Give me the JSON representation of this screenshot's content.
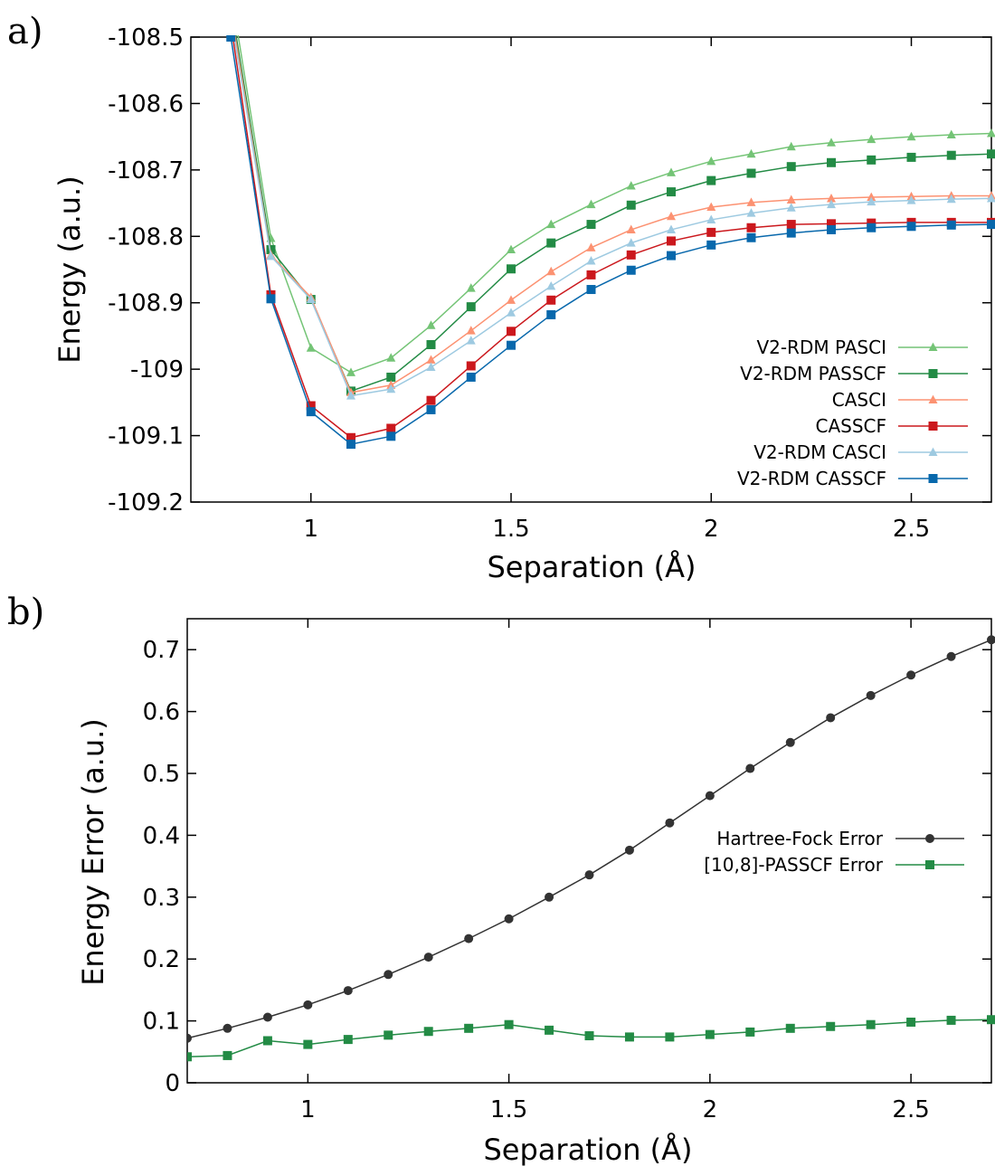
{
  "chart_data": [
    {
      "type": "line",
      "panel_label": "a)",
      "title": "",
      "xlabel": "Separation (Å)",
      "ylabel": "Energy (a.u.)",
      "xlim": [
        0.7,
        2.7
      ],
      "ylim": [
        -109.2,
        -108.5
      ],
      "xticks": [
        1,
        1.5,
        2,
        2.5
      ],
      "xtick_labels": [
        "1",
        "1.5",
        "2",
        "2.5"
      ],
      "yticks": [
        -108.5,
        -108.6,
        -108.7,
        -108.8,
        -108.9,
        -109.0,
        -109.1,
        -109.2
      ],
      "ytick_labels": [
        "-108.5",
        "-108.6",
        "-108.7",
        "-108.8",
        "-108.9",
        "-109",
        "-109.1",
        "-109.2"
      ],
      "grid": false,
      "legend_position": "right",
      "x": [
        0.8,
        0.9,
        1.0,
        1.1,
        1.2,
        1.3,
        1.4,
        1.5,
        1.6,
        1.7,
        1.8,
        1.9,
        2.0,
        2.1,
        2.2,
        2.3,
        2.4,
        2.5,
        2.6,
        2.7
      ],
      "series": [
        {
          "name": "V2-RDM PASCI",
          "color": "#74c476",
          "marker": "triangle",
          "values": [
            -108.43,
            -108.803,
            -108.968,
            -109.005,
            -108.983,
            -108.934,
            -108.878,
            -108.82,
            -108.782,
            -108.752,
            -108.724,
            -108.704,
            -108.687,
            -108.676,
            -108.665,
            -108.659,
            -108.654,
            -108.65,
            -108.647,
            -108.645
          ]
        },
        {
          "name": "V2-RDM PASSCF",
          "color": "#238b45",
          "marker": "square",
          "values": [
            -108.45,
            -108.82,
            -108.895,
            -109.033,
            -109.012,
            -108.963,
            -108.906,
            -108.849,
            -108.81,
            -108.782,
            -108.753,
            -108.733,
            -108.716,
            -108.705,
            -108.695,
            -108.689,
            -108.685,
            -108.681,
            -108.678,
            -108.676
          ]
        },
        {
          "name": "CASCI",
          "color": "#fc9272",
          "marker": "triangle",
          "values": [
            -108.46,
            -108.828,
            -108.892,
            -109.035,
            -109.024,
            -108.986,
            -108.942,
            -108.896,
            -108.853,
            -108.817,
            -108.79,
            -108.77,
            -108.756,
            -108.749,
            -108.745,
            -108.743,
            -108.741,
            -108.74,
            -108.739,
            -108.739
          ]
        },
        {
          "name": "CASSCF",
          "color": "#cb181d",
          "marker": "square",
          "values": [
            -108.48,
            -108.888,
            -109.055,
            -109.103,
            -109.089,
            -109.047,
            -108.995,
            -108.943,
            -108.896,
            -108.858,
            -108.828,
            -108.807,
            -108.794,
            -108.787,
            -108.782,
            -108.781,
            -108.78,
            -108.779,
            -108.779,
            -108.779
          ]
        },
        {
          "name": "V2-RDM CASCI",
          "color": "#9ecae1",
          "marker": "triangle",
          "values": [
            -108.47,
            -108.83,
            -108.895,
            -109.04,
            -109.03,
            -108.997,
            -108.957,
            -108.915,
            -108.875,
            -108.837,
            -108.81,
            -108.79,
            -108.775,
            -108.765,
            -108.757,
            -108.752,
            -108.748,
            -108.746,
            -108.744,
            -108.743
          ]
        },
        {
          "name": "V2-RDM CASSCF",
          "color": "#0868ac",
          "marker": "square",
          "values": [
            -108.5,
            -108.894,
            -109.064,
            -109.113,
            -109.101,
            -109.061,
            -109.012,
            -108.964,
            -108.918,
            -108.88,
            -108.851,
            -108.829,
            -108.813,
            -108.802,
            -108.795,
            -108.79,
            -108.787,
            -108.785,
            -108.783,
            -108.782
          ]
        }
      ]
    },
    {
      "type": "line",
      "panel_label": "b)",
      "title": "",
      "xlabel": "Separation (Å)",
      "ylabel": "Energy Error (a.u.)",
      "xlim": [
        0.7,
        2.7
      ],
      "ylim": [
        0,
        0.75
      ],
      "xticks": [
        1,
        1.5,
        2,
        2.5
      ],
      "xtick_labels": [
        "1",
        "1.5",
        "2",
        "2.5"
      ],
      "yticks": [
        0,
        0.1,
        0.2,
        0.3,
        0.4,
        0.5,
        0.6,
        0.7
      ],
      "ytick_labels": [
        "0",
        "0.1",
        "0.2",
        "0.3",
        "0.4",
        "0.5",
        "0.6",
        "0.7"
      ],
      "grid": false,
      "legend_position": "right",
      "x": [
        0.7,
        0.8,
        0.9,
        1.0,
        1.1,
        1.2,
        1.3,
        1.4,
        1.5,
        1.6,
        1.7,
        1.8,
        1.9,
        2.0,
        2.1,
        2.2,
        2.3,
        2.4,
        2.5,
        2.6,
        2.7
      ],
      "series": [
        {
          "name": "Hartree-Fock Error",
          "color": "#333333",
          "marker": "circle",
          "values": [
            0.072,
            0.088,
            0.106,
            0.126,
            0.149,
            0.175,
            0.203,
            0.233,
            0.265,
            0.3,
            0.336,
            0.376,
            0.42,
            0.464,
            0.508,
            0.55,
            0.59,
            0.626,
            0.659,
            0.689,
            0.716
          ]
        },
        {
          "name": "[10,8]-PASSCF Error",
          "color": "#238b45",
          "marker": "square",
          "values": [
            0.042,
            0.044,
            0.068,
            0.062,
            0.07,
            0.077,
            0.083,
            0.088,
            0.094,
            0.085,
            0.076,
            0.074,
            0.074,
            0.078,
            0.082,
            0.088,
            0.091,
            0.094,
            0.098,
            0.101,
            0.102
          ]
        }
      ]
    }
  ]
}
